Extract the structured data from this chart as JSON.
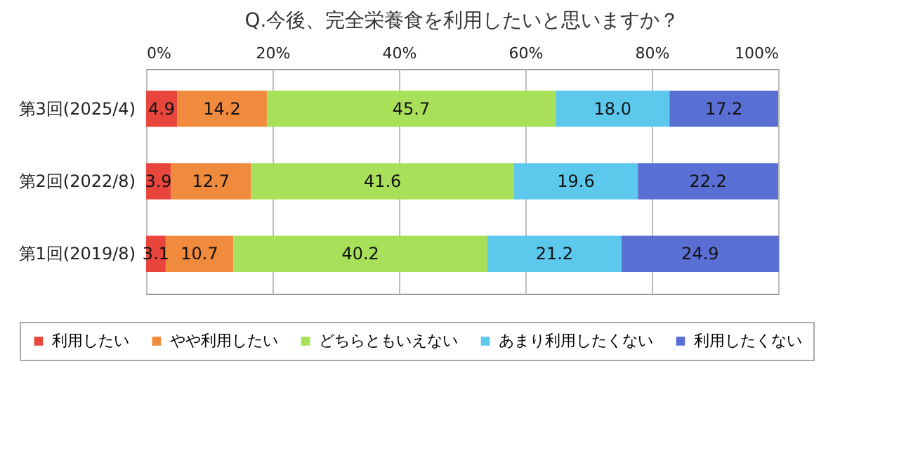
{
  "chart_data": {
    "type": "bar",
    "orientation": "horizontal",
    "stacked": true,
    "title": "Q.今後、完全栄養食を利用したいと思いますか？",
    "categories": [
      "第3回(2025/4)",
      "第2回(2022/8)",
      "第1回(2019/8)"
    ],
    "series": [
      {
        "name": "利用したい",
        "color": "#e8453c",
        "values": [
          4.9,
          3.9,
          3.1
        ]
      },
      {
        "name": "やや利用したい",
        "color": "#f08a3c",
        "values": [
          14.2,
          12.7,
          10.7
        ]
      },
      {
        "name": "どちらともいえない",
        "color": "#a8e05a",
        "values": [
          45.7,
          41.6,
          40.2
        ]
      },
      {
        "name": "あまり利用したくない",
        "color": "#5cc8ec",
        "values": [
          18.0,
          19.6,
          21.2
        ]
      },
      {
        "name": "利用したくない",
        "color": "#5a6fd4",
        "values": [
          17.2,
          22.2,
          24.9
        ]
      }
    ],
    "xlim": [
      0,
      100
    ],
    "xticks": [
      {
        "value": 0,
        "label": "0%"
      },
      {
        "value": 20,
        "label": "20%"
      },
      {
        "value": 40,
        "label": "40%"
      },
      {
        "value": 60,
        "label": "60%"
      },
      {
        "value": 80,
        "label": "80%"
      },
      {
        "value": 100,
        "label": "100%"
      }
    ],
    "grid": "x",
    "legend": "bottom",
    "value_labels": [
      [
        "4.9",
        "3.9",
        "3.1"
      ],
      [
        "14.2",
        "12.7",
        "10.7"
      ],
      [
        "45.7",
        "41.6",
        "40.2"
      ],
      [
        "18.0",
        "19.6",
        "21.2"
      ],
      [
        "17.2",
        "22.2",
        "24.9"
      ]
    ]
  }
}
